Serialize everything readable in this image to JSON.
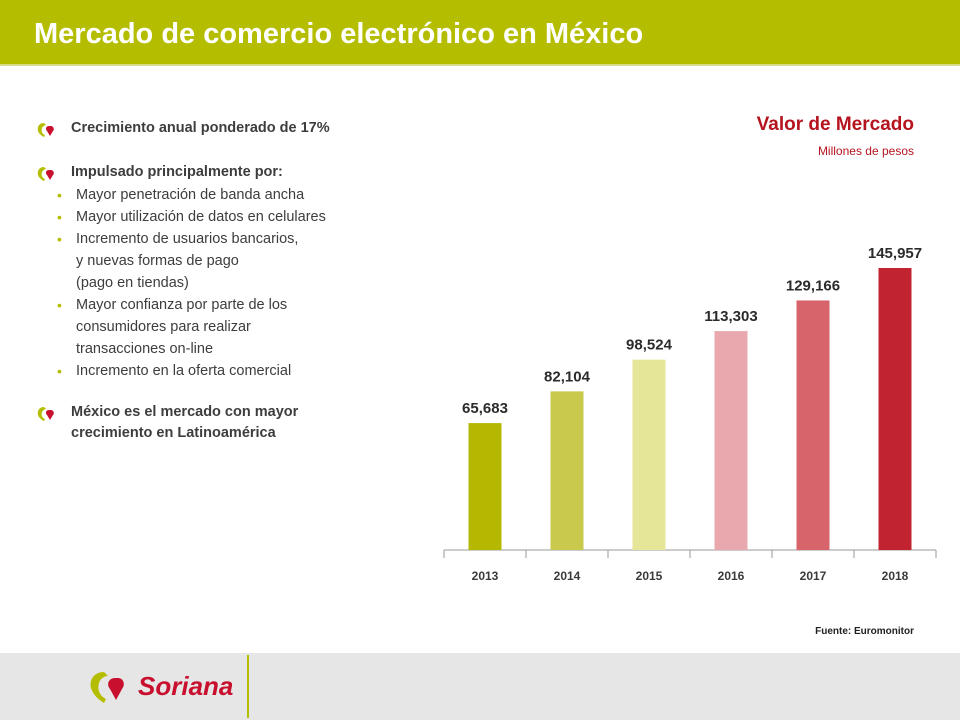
{
  "title": "Mercado de comercio electrónico en México",
  "bullets": [
    {
      "text": "Crecimiento anual ponderado de 17%"
    },
    {
      "text": "Impulsado principalmente por:",
      "sub": [
        [
          "Mayor penetración de banda ancha"
        ],
        [
          "Mayor utilización de datos en celulares"
        ],
        [
          "Incremento de usuarios bancarios,",
          "y nuevas formas de pago",
          "(pago en tiendas)"
        ],
        [
          "Mayor confianza por parte de los",
          "consumidores para realizar",
          "transacciones on-line"
        ],
        [
          "Incremento en la oferta comercial"
        ]
      ]
    },
    {
      "text": "México es el mercado con mayor crecimiento en Latinoamérica"
    }
  ],
  "colors": {
    "header": "#b5bd00",
    "accent_red": "#b5141f"
  },
  "chart_data": {
    "type": "bar",
    "title": "Valor de Mercado",
    "subtitle": "Millones de pesos",
    "categories": [
      "2013",
      "2014",
      "2015",
      "2016",
      "2017",
      "2018"
    ],
    "values": [
      65683,
      82104,
      98524,
      113303,
      129166,
      145957
    ],
    "value_labels": [
      "65,683",
      "82,104",
      "98,524",
      "113,303",
      "129,166",
      "145,957"
    ],
    "bar_colors": [
      "#b5b800",
      "#c9c94d",
      "#e6e698",
      "#e8a8ad",
      "#d6646a",
      "#c12330"
    ],
    "ylim": [
      0,
      145957
    ],
    "grid": false
  },
  "source": "Fuente: Euromonitor",
  "footer": {
    "logo_text": "Soriana"
  }
}
